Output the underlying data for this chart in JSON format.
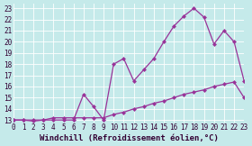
{
  "xlabel": "Windchill (Refroidissement éolien,°C)",
  "bg_color": "#c5eaea",
  "grid_color": "#ffffff",
  "line_color": "#993399",
  "x_ticks": [
    0,
    1,
    2,
    3,
    4,
    5,
    6,
    7,
    8,
    9,
    10,
    11,
    12,
    13,
    14,
    15,
    16,
    17,
    18,
    19,
    20,
    21,
    22,
    23
  ],
  "y_ticks": [
    13,
    14,
    15,
    16,
    17,
    18,
    19,
    20,
    21,
    22,
    23
  ],
  "xlim": [
    0,
    23
  ],
  "ylim": [
    12.8,
    23.4
  ],
  "line1_x": [
    0,
    1,
    2,
    3,
    4,
    5,
    6,
    7,
    8,
    9,
    10,
    11,
    12,
    13,
    14,
    15,
    16,
    17,
    18,
    19,
    20,
    21,
    22,
    23
  ],
  "line1_y": [
    13,
    13,
    12.9,
    13,
    13,
    13,
    13,
    15.3,
    14.2,
    13,
    18.0,
    18.5,
    16.5,
    17.5,
    18.5,
    20.0,
    21.4,
    22.3,
    23.0,
    22.2,
    19.8,
    21.0,
    20.0,
    16.5
  ],
  "line2_x": [
    0,
    1,
    2,
    3,
    4,
    5,
    6,
    7,
    8,
    9,
    10,
    11,
    12,
    13,
    14,
    15,
    16,
    17,
    18,
    19,
    20,
    21,
    22,
    23
  ],
  "line2_y": [
    13,
    13,
    13,
    13,
    13.2,
    13.2,
    13.2,
    13.2,
    13.2,
    13.2,
    13.5,
    13.7,
    14.0,
    14.2,
    14.5,
    14.7,
    15.0,
    15.3,
    15.5,
    15.7,
    16.0,
    16.2,
    16.4,
    15.0
  ],
  "tick_fontsize": 5.5,
  "xlabel_fontsize": 6.5,
  "marker": "D",
  "markersize": 2.5,
  "linewidth": 0.9
}
